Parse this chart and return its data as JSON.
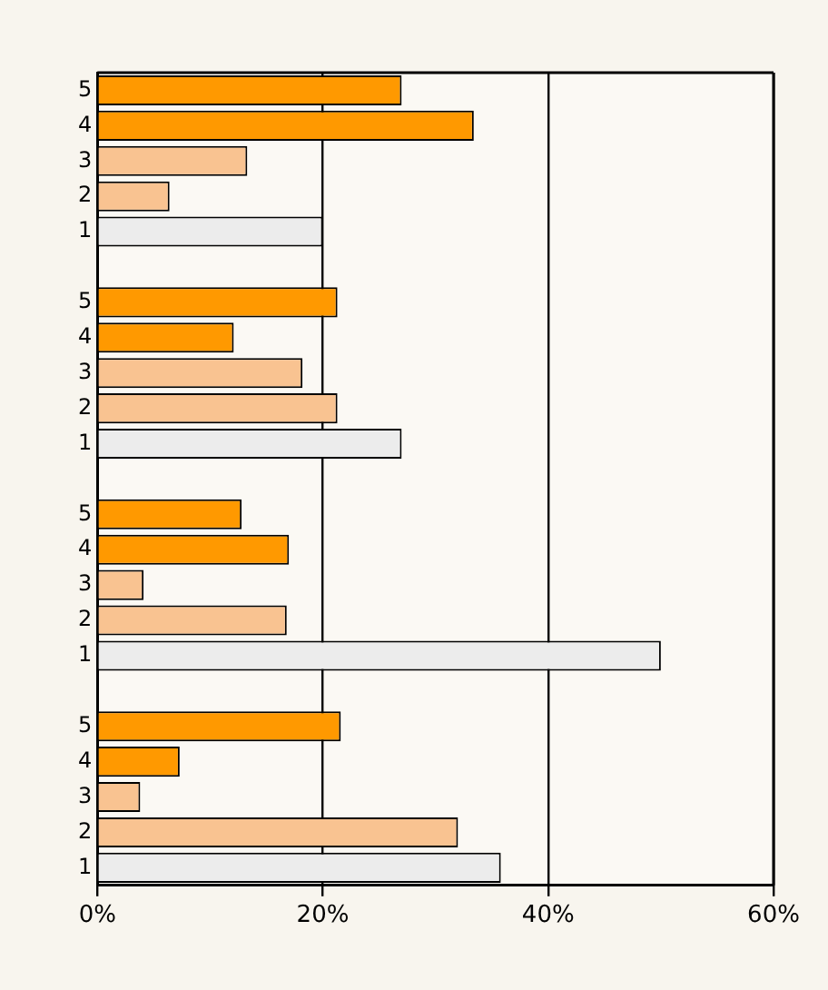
{
  "chart_data": {
    "type": "bar",
    "orientation": "horizontal",
    "categories": [
      "5",
      "4",
      "3",
      "2",
      "1",
      null,
      "5",
      "4",
      "3",
      "2",
      "1",
      null,
      "5",
      "4",
      "3",
      "2",
      "1",
      null,
      "5",
      "4",
      "3",
      "2",
      "1"
    ],
    "values": [
      27,
      33.4,
      13.3,
      6.4,
      20,
      null,
      21.3,
      12.1,
      18.2,
      21.3,
      27,
      null,
      12.8,
      17,
      4.1,
      16.8,
      50,
      null,
      21.6,
      7.3,
      3.8,
      32,
      35.8
    ],
    "colors": [
      "#ff9900",
      "#ff9900",
      "#f9c391",
      "#f9c391",
      "#ececec",
      null,
      "#ff9900",
      "#ff9900",
      "#f9c391",
      "#f9c391",
      "#ececec",
      null,
      "#ff9900",
      "#ff9900",
      "#f9c391",
      "#f9c391",
      "#ececec",
      null,
      "#ff9900",
      "#ff9900",
      "#f9c391",
      "#f9c391",
      "#ececec"
    ],
    "xlim": [
      0,
      60
    ],
    "xticks": [
      {
        "value": 0,
        "label": "0%"
      },
      {
        "value": 20,
        "label": "20%"
      },
      {
        "value": 40,
        "label": "40%"
      },
      {
        "value": 60,
        "label": "60%"
      }
    ],
    "grid": "x",
    "legend": false
  }
}
